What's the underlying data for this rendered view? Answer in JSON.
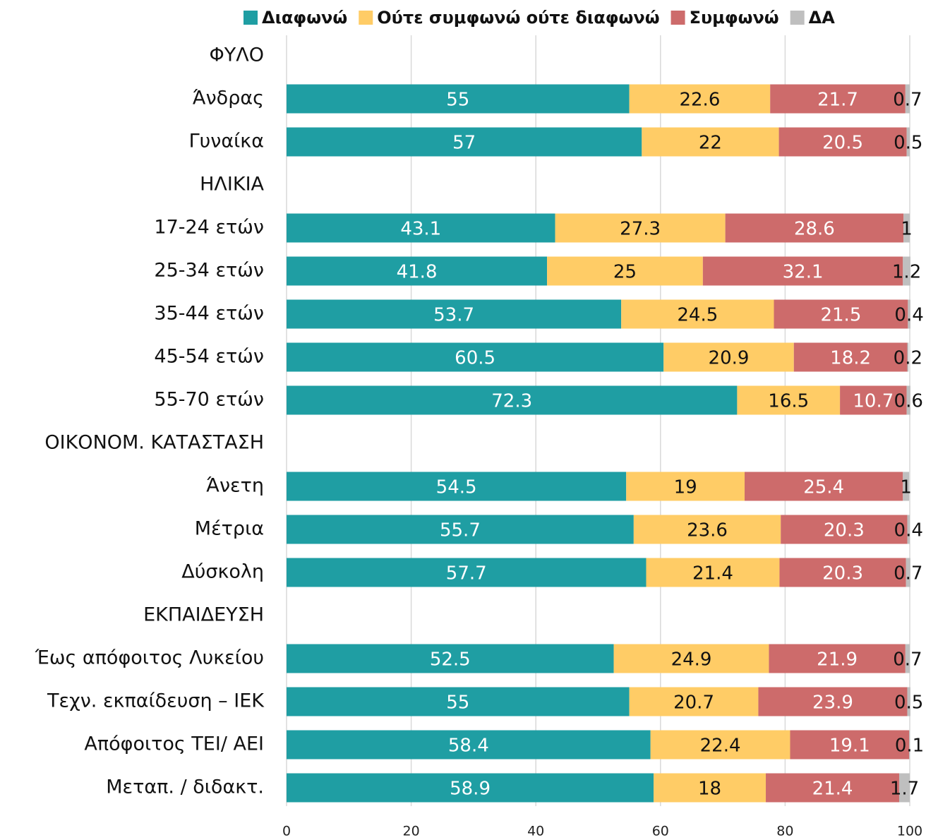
{
  "chart_data": {
    "type": "stacked-bar-horizontal",
    "categories": [
      "ΦΥΛΟ",
      "Άνδρας",
      "Γυναίκα",
      "ΗΛΙΚΙΑ",
      "17-24 ετών",
      "25-34 ετών",
      "35-44 ετών",
      "45-54 ετών",
      "55-70 ετών",
      "ΟΙΚΟΝΟΜ. ΚΑΤΑΣΤΑΣΗ",
      "Άνετη",
      "Μέτρια",
      "Δύσκολη",
      "ΕΚΠΑΙΔΕΥΣΗ",
      "Έως απόφοιτος Λυκείου",
      "Τεχν. εκπαίδευση – ΙΕΚ",
      "Απόφοιτος ΤΕΙ/ ΑΕΙ",
      "Μεταπ. / διδακτ."
    ],
    "series": [
      {
        "name": "Διαφωνώ",
        "color": "#1f9ea3",
        "values": [
          null,
          55,
          57,
          null,
          43.1,
          41.8,
          53.7,
          60.5,
          72.3,
          null,
          54.5,
          55.7,
          57.7,
          null,
          52.5,
          55,
          58.4,
          58.9
        ]
      },
      {
        "name": "Ούτε συμφωνώ ούτε διαφωνώ",
        "color": "#ffcc66",
        "values": [
          null,
          22.6,
          22,
          null,
          27.3,
          25,
          24.5,
          20.9,
          16.5,
          null,
          19,
          23.6,
          21.4,
          null,
          24.9,
          20.7,
          22.4,
          18
        ]
      },
      {
        "name": "Συμφωνώ",
        "color": "#cd6b6b",
        "values": [
          null,
          21.7,
          20.5,
          null,
          28.6,
          32.1,
          21.5,
          18.2,
          10.7,
          null,
          25.4,
          20.3,
          20.3,
          null,
          21.9,
          23.9,
          19.1,
          21.4
        ]
      },
      {
        "name": "ΔΑ",
        "color": "#bfbfbf",
        "values": [
          null,
          0.7,
          0.5,
          null,
          1,
          1.2,
          0.4,
          0.2,
          0.6,
          null,
          1,
          0.4,
          0.7,
          null,
          0.7,
          0.5,
          0.1,
          1.7
        ]
      }
    ],
    "xlim": [
      0,
      100
    ],
    "xticks": [
      0,
      20,
      40,
      60,
      80,
      100
    ],
    "grid": true,
    "legend": "top"
  }
}
